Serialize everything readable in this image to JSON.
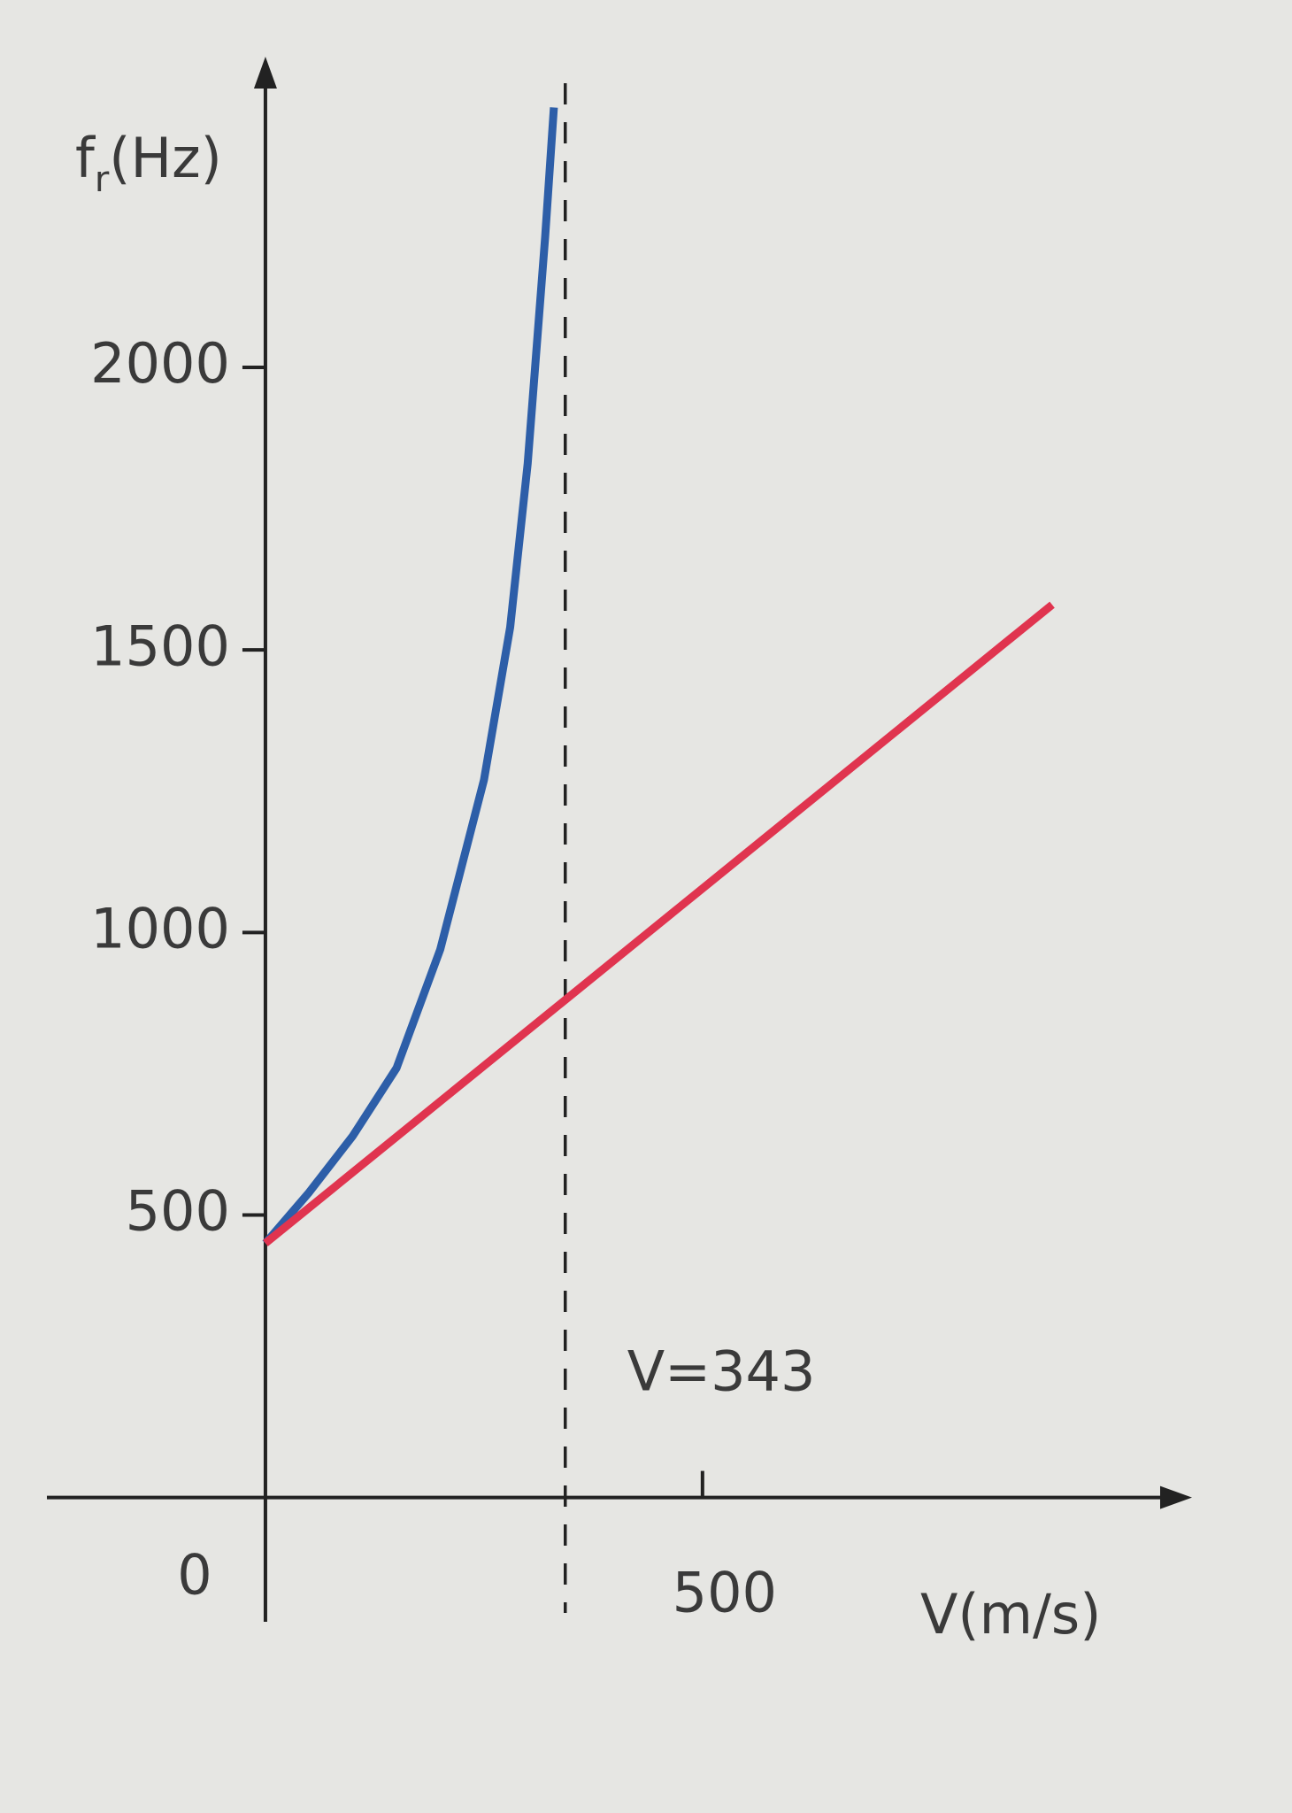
{
  "chart_data": {
    "type": "line",
    "y_label": [
      "f",
      "r",
      "(Hz)"
    ],
    "x_label": "V(m/s)",
    "xlim": [
      -250,
      1060
    ],
    "ylim": [
      -220,
      2550
    ],
    "xticks": [
      0,
      500
    ],
    "yticks": [
      500,
      1000,
      1500,
      2000
    ],
    "grid": false,
    "vline": {
      "x": 343,
      "label": "V=343"
    },
    "series": [
      {
        "color": "#2d5ea8",
        "x": [
          0,
          50,
          100,
          150,
          200,
          250,
          280,
          300,
          320,
          330
        ],
        "values": [
          450,
          540,
          640,
          760,
          970,
          1270,
          1540,
          1830,
          2230,
          2460
        ]
      },
      {
        "color": "#e0344f",
        "x": [
          0,
          900
        ],
        "values": [
          450,
          1580
        ]
      }
    ]
  }
}
